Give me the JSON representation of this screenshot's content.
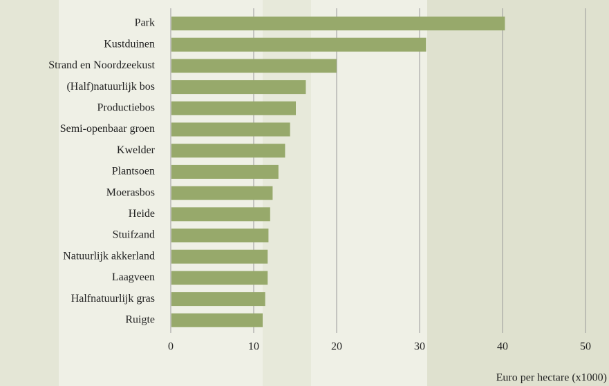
{
  "chart_data": {
    "type": "bar",
    "orientation": "horizontal",
    "categories": [
      "Park",
      "Kustduinen",
      "Strand en Noordzeekust",
      "(Half)natuurlijk bos",
      "Productiebos",
      "Semi-openbaar groen",
      "Kwelder",
      "Plantsoen",
      "Moerasbos",
      "Heide",
      "Stuifzand",
      "Natuurlijk akkerland",
      "Laagveen",
      "Halfnatuurlijk gras",
      "Ruigte"
    ],
    "values": [
      40.2,
      30.7,
      19.9,
      16.2,
      15.0,
      14.3,
      13.7,
      12.9,
      12.2,
      11.9,
      11.7,
      11.6,
      11.6,
      11.3,
      11.0
    ],
    "color": "#97a96b",
    "xlabel": "Euro per hectare (x1000)",
    "xlim": [
      0,
      50
    ],
    "xticks": [
      0,
      10,
      20,
      30,
      40,
      50
    ],
    "grid": true
  }
}
